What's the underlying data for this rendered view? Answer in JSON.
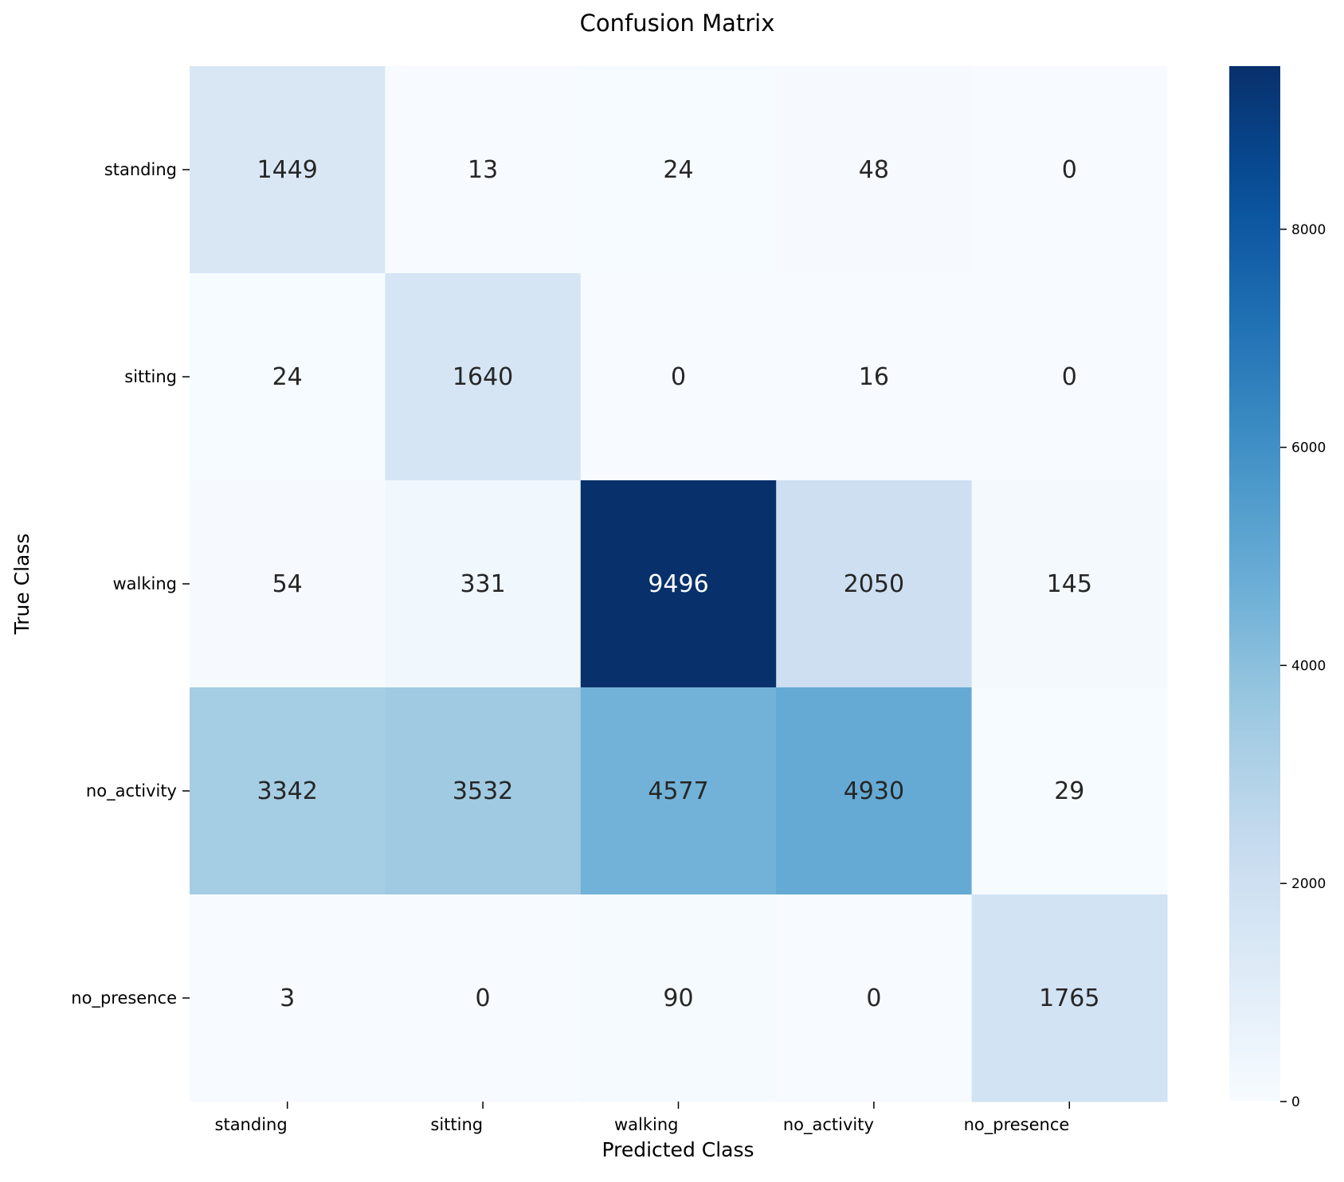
{
  "chart_data": {
    "type": "heatmap",
    "title": "Confusion Matrix",
    "xlabel": "Predicted Class",
    "ylabel": "True Class",
    "x_categories": [
      "standing",
      "sitting",
      "walking",
      "no_activity",
      "no_presence"
    ],
    "y_categories": [
      "standing",
      "sitting",
      "walking",
      "no_activity",
      "no_presence"
    ],
    "values": [
      [
        1449,
        13,
        24,
        48,
        0
      ],
      [
        24,
        1640,
        0,
        16,
        0
      ],
      [
        54,
        331,
        9496,
        2050,
        145
      ],
      [
        3342,
        3532,
        4577,
        4930,
        29
      ],
      [
        3,
        0,
        90,
        0,
        1765
      ]
    ],
    "colormap": "Blues",
    "colorbar": {
      "range": [
        0,
        9496
      ],
      "ticks": [
        0,
        2000,
        4000,
        6000,
        8000
      ]
    },
    "colors": {
      "low": "#f7fbff",
      "high": "#08306b",
      "text_dark": "#262626",
      "text_light": "#ffffff"
    }
  }
}
